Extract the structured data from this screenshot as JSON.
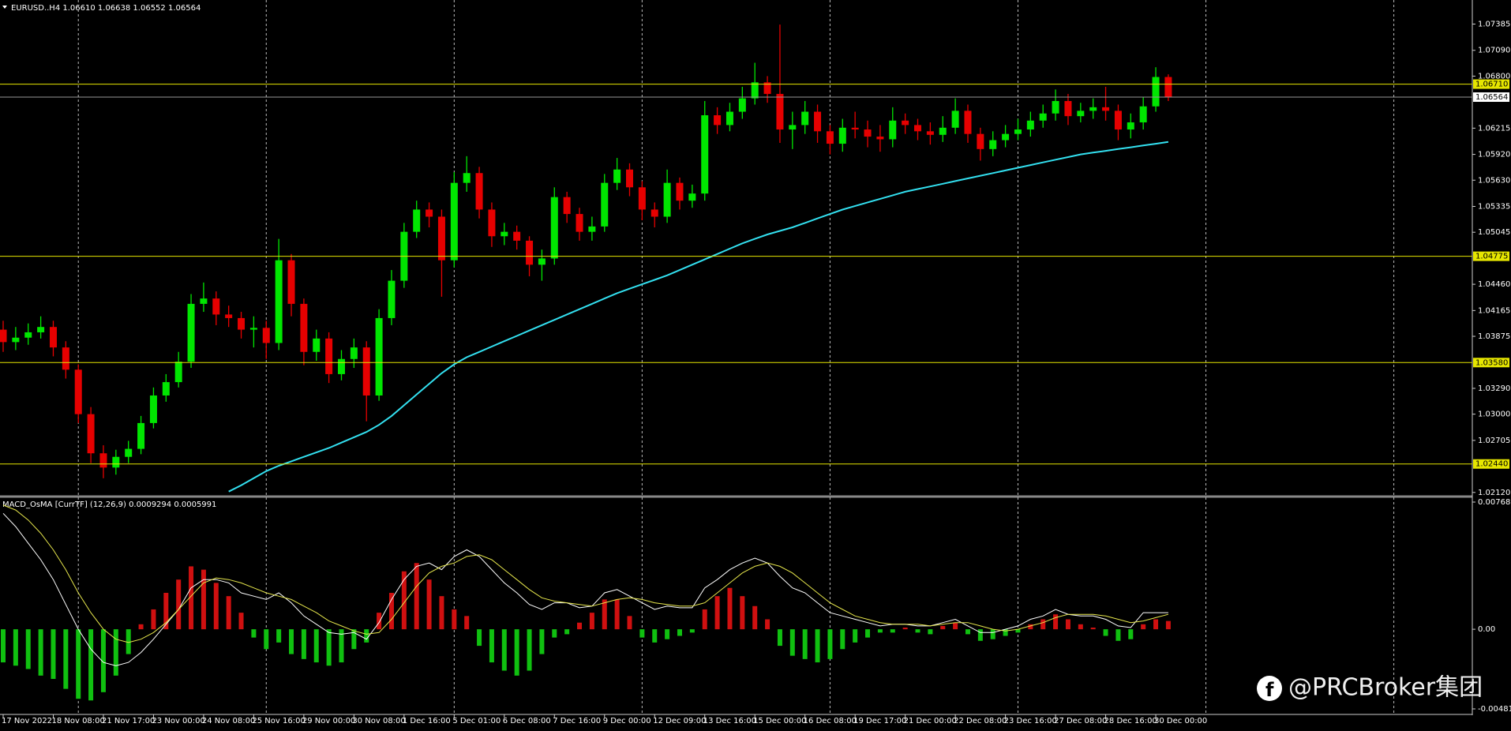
{
  "header": "EURUSD..H4  1.06610 1.06638 1.06552 1.06564",
  "watermark": "@PRCBroker集团",
  "chart_data": [
    {
      "type": "candlestick",
      "up_color": "#00e600",
      "down_color": "#e60000",
      "ylim": [
        1.0212,
        1.07385
      ],
      "yticks": [
        1.07385,
        {
          "value": 1.0709,
          "label": "1.07090"
        },
        {
          "value": 1.068,
          "label": "1.06800"
        },
        1.06215,
        {
          "value": 1.0592,
          "label": "1.05920"
        },
        {
          "value": 1.0563,
          "label": "1.05630"
        },
        1.05335,
        1.05045,
        {
          "value": 1.0446,
          "label": "1.04460"
        },
        1.04165,
        1.03875,
        {
          "value": 1.0329,
          "label": "1.03290"
        },
        {
          "value": 1.03,
          "label": "1.03000"
        },
        1.02705,
        {
          "value": 1.0212,
          "label": "1.02120"
        }
      ],
      "levels": [
        {
          "value": 1.0671,
          "label": "1.06710"
        },
        1.04775,
        {
          "value": 1.0358,
          "label": "1.03580"
        },
        {
          "value": 1.0244,
          "label": "1.02440"
        }
      ],
      "level_color": "#e6e600",
      "current": 1.06564,
      "grid": true,
      "xlabels": [
        "17 Nov 2022",
        "18 Nov 08:00",
        "21 Nov 17:00",
        "23 Nov 00:00",
        "24 Nov 08:00",
        "25 Nov 16:00",
        "29 Nov 00:00",
        "30 Nov 08:00",
        "1 Dec 16:00",
        "5 Dec 01:00",
        "6 Dec 08:00",
        "7 Dec 16:00",
        "9 Dec 00:00",
        "12 Dec 09:00",
        "13 Dec 16:00",
        "15 Dec 00:00",
        "16 Dec 08:00",
        "19 Dec 17:00",
        "21 Dec 00:00",
        "22 Dec 08:00",
        "23 Dec 16:00",
        "27 Dec 08:00",
        "28 Dec 16:00",
        "30 Dec 00:00"
      ],
      "open": [
        1.0395,
        1.0381,
        1.0386,
        1.0392,
        1.0398,
        1.0375,
        1.035,
        1.03,
        1.0256,
        1.024,
        1.0252,
        1.0261,
        1.029,
        1.0321,
        1.0336,
        1.0359,
        1.0424,
        1.043,
        1.0412,
        1.0408,
        1.0395,
        1.0397,
        1.038,
        1.0473,
        1.0424,
        1.037,
        1.0385,
        1.0345,
        1.0362,
        1.0375,
        1.0321,
        1.0408,
        1.045,
        1.0505,
        1.053,
        1.0522,
        1.0473,
        1.056,
        1.0571,
        1.053,
        1.05,
        1.0505,
        1.0495,
        1.0468,
        1.0475,
        1.0544,
        1.0525,
        1.0505,
        1.0511,
        1.056,
        1.0575,
        1.0555,
        1.053,
        1.0522,
        1.056,
        1.054,
        1.0548,
        1.0636,
        1.0625,
        1.064,
        1.0655,
        1.0673,
        1.066,
        1.062,
        1.0625,
        1.064,
        1.0618,
        1.0604,
        1.0622,
        1.062,
        1.0612,
        1.0609,
        1.063,
        1.0625,
        1.0618,
        1.0614,
        1.0622,
        1.0641,
        1.0615,
        1.0598,
        1.0608,
        1.0615,
        1.062,
        1.063,
        1.0638,
        1.0652,
        1.0635,
        1.0641,
        1.0645,
        1.0641,
        1.062,
        1.0628,
        1.0646,
        1.0679
      ],
      "high": [
        1.0405,
        1.0398,
        1.0402,
        1.041,
        1.0405,
        1.0382,
        1.0356,
        1.0308,
        1.0265,
        1.026,
        1.027,
        1.0298,
        1.033,
        1.0345,
        1.037,
        1.0435,
        1.0448,
        1.0438,
        1.0422,
        1.0415,
        1.041,
        1.0405,
        1.0497,
        1.048,
        1.043,
        1.0395,
        1.0392,
        1.0372,
        1.0385,
        1.0382,
        1.0418,
        1.0462,
        1.0515,
        1.054,
        1.0538,
        1.053,
        1.0572,
        1.059,
        1.0578,
        1.0538,
        1.0515,
        1.0512,
        1.05,
        1.0485,
        1.0555,
        1.055,
        1.0532,
        1.0522,
        1.057,
        1.0588,
        1.0582,
        1.0562,
        1.0538,
        1.0575,
        1.0566,
        1.0558,
        1.0652,
        1.0645,
        1.065,
        1.0668,
        1.0695,
        1.068,
        1.0738,
        1.064,
        1.0652,
        1.0648,
        1.0625,
        1.0632,
        1.064,
        1.063,
        1.0625,
        1.0645,
        1.0638,
        1.0632,
        1.0628,
        1.0635,
        1.0655,
        1.0648,
        1.0622,
        1.0618,
        1.0625,
        1.0632,
        1.064,
        1.0648,
        1.0665,
        1.066,
        1.065,
        1.0655,
        1.0668,
        1.0648,
        1.0638,
        1.0656,
        1.069,
        1.0682
      ],
      "low": [
        1.037,
        1.0372,
        1.0378,
        1.0385,
        1.0365,
        1.034,
        1.029,
        1.0245,
        1.0228,
        1.0232,
        1.0245,
        1.0255,
        1.0284,
        1.0314,
        1.033,
        1.0352,
        1.0415,
        1.04,
        1.0398,
        1.0385,
        1.0375,
        1.0362,
        1.0372,
        1.041,
        1.0355,
        1.036,
        1.0335,
        1.0338,
        1.0352,
        1.0292,
        1.0315,
        1.04,
        1.0442,
        1.0498,
        1.051,
        1.0432,
        1.0465,
        1.055,
        1.052,
        1.0488,
        1.049,
        1.0485,
        1.0455,
        1.045,
        1.0468,
        1.0515,
        1.0495,
        1.0495,
        1.0505,
        1.0552,
        1.0545,
        1.0518,
        1.051,
        1.0515,
        1.053,
        1.0532,
        1.054,
        1.0615,
        1.0618,
        1.0632,
        1.0648,
        1.065,
        1.0605,
        1.0598,
        1.0615,
        1.0605,
        1.0592,
        1.0595,
        1.061,
        1.06,
        1.0595,
        1.06,
        1.0615,
        1.0608,
        1.0603,
        1.0606,
        1.0615,
        1.0605,
        1.0585,
        1.059,
        1.06,
        1.0608,
        1.0612,
        1.0622,
        1.063,
        1.0625,
        1.0628,
        1.0632,
        1.063,
        1.0608,
        1.061,
        1.062,
        1.064,
        1.0652
      ],
      "close": [
        1.0381,
        1.0386,
        1.0392,
        1.0398,
        1.0375,
        1.035,
        1.03,
        1.0256,
        1.024,
        1.0252,
        1.0261,
        1.029,
        1.0321,
        1.0336,
        1.0359,
        1.0424,
        1.043,
        1.0412,
        1.0408,
        1.0395,
        1.0397,
        1.038,
        1.0473,
        1.0424,
        1.037,
        1.0385,
        1.0345,
        1.0362,
        1.0375,
        1.0321,
        1.0408,
        1.045,
        1.0505,
        1.053,
        1.0522,
        1.0473,
        1.056,
        1.0571,
        1.053,
        1.05,
        1.0505,
        1.0495,
        1.0468,
        1.0475,
        1.0544,
        1.0525,
        1.0505,
        1.0511,
        1.056,
        1.0575,
        1.0555,
        1.053,
        1.0522,
        1.056,
        1.054,
        1.0548,
        1.0636,
        1.0625,
        1.064,
        1.0655,
        1.0673,
        1.066,
        1.062,
        1.0625,
        1.064,
        1.0618,
        1.0604,
        1.0622,
        1.062,
        1.0612,
        1.0609,
        1.063,
        1.0625,
        1.0618,
        1.0614,
        1.0622,
        1.0641,
        1.0615,
        1.0598,
        1.0608,
        1.0615,
        1.062,
        1.063,
        1.0638,
        1.0652,
        1.0635,
        1.0641,
        1.0645,
        1.0641,
        1.062,
        1.0628,
        1.0646,
        1.0679,
        1.0656
      ],
      "ma": {
        "color": "#33e0f0",
        "values": [
          null,
          null,
          null,
          null,
          null,
          null,
          null,
          null,
          null,
          null,
          null,
          null,
          null,
          null,
          null,
          null,
          null,
          null,
          1.0213,
          1.022,
          1.0228,
          1.0236,
          1.0242,
          1.0247,
          1.0252,
          1.0257,
          1.0262,
          1.0268,
          1.0274,
          1.028,
          1.0288,
          1.0298,
          1.031,
          1.0322,
          1.0334,
          1.0346,
          1.0356,
          1.0364,
          1.037,
          1.0376,
          1.0382,
          1.0388,
          1.0394,
          1.04,
          1.0406,
          1.0412,
          1.0418,
          1.0424,
          1.043,
          1.0436,
          1.0441,
          1.0446,
          1.0451,
          1.0456,
          1.0462,
          1.0468,
          1.0474,
          1.048,
          1.0486,
          1.0492,
          1.0497,
          1.0502,
          1.0506,
          1.051,
          1.0515,
          1.052,
          1.0525,
          1.053,
          1.0534,
          1.0538,
          1.0542,
          1.0546,
          1.055,
          1.0553,
          1.0556,
          1.0559,
          1.0562,
          1.0565,
          1.0568,
          1.0571,
          1.0574,
          1.0577,
          1.058,
          1.0583,
          1.0586,
          1.0589,
          1.0592,
          1.0594,
          1.0596,
          1.0598,
          1.06,
          1.0602,
          1.0604,
          1.0606
        ]
      }
    },
    {
      "type": "macd",
      "title": "MACD_OsMA [CurrTF] (12,26,9) 0.0009294 0.0005991",
      "ylim": [
        -0.004811,
        0.0076837
      ],
      "yticks": [
        0.0076837,
        {
          "value": 0,
          "label": "0.00"
        },
        -0.004811
      ],
      "up_color": "#d01010",
      "down_color": "#10c010",
      "histogram": [
        -0.002,
        -0.0022,
        -0.0024,
        -0.0028,
        -0.003,
        -0.0036,
        -0.0042,
        -0.0043,
        -0.0038,
        -0.0028,
        -0.0015,
        0.0003,
        0.0012,
        0.0022,
        0.003,
        0.0038,
        0.0036,
        0.0028,
        0.002,
        0.001,
        -0.0005,
        -0.0012,
        -0.0008,
        -0.0015,
        -0.0018,
        -0.002,
        -0.0022,
        -0.002,
        -0.0012,
        -0.0008,
        0.001,
        0.0022,
        0.0035,
        0.004,
        0.003,
        0.002,
        0.0012,
        0.0008,
        -0.001,
        -0.002,
        -0.0025,
        -0.0028,
        -0.0025,
        -0.0015,
        -0.0005,
        -0.0003,
        0.0004,
        0.001,
        0.0018,
        0.0018,
        0.0008,
        -0.0005,
        -0.0008,
        -0.0006,
        -0.0004,
        -0.0002,
        0.0012,
        0.002,
        0.0025,
        0.002,
        0.0014,
        0.0006,
        -0.001,
        -0.0016,
        -0.0018,
        -0.002,
        -0.0018,
        -0.0012,
        -0.0008,
        -0.0005,
        -0.0002,
        -0.0002,
        0.0001,
        -0.0002,
        -0.0003,
        0.0002,
        0.0004,
        -0.0003,
        -0.0007,
        -0.0006,
        -0.0004,
        -0.0002,
        0.0003,
        0.0006,
        0.0009,
        0.0006,
        0.0003,
        0.0001,
        -0.0004,
        -0.0007,
        -0.0006,
        0.0003,
        0.0006,
        0.0005
      ],
      "series": [
        {
          "color": "#ffffff",
          "values": [
            0.007,
            0.0062,
            0.0052,
            0.0042,
            0.003,
            0.0015,
            0.0,
            -0.0012,
            -0.002,
            -0.0022,
            -0.002,
            -0.0014,
            -0.0006,
            0.0003,
            0.0012,
            0.0025,
            0.003,
            0.003,
            0.0028,
            0.0022,
            0.002,
            0.0018,
            0.0022,
            0.0016,
            0.0008,
            0.0003,
            -0.0002,
            -0.0003,
            -0.0002,
            -0.0006,
            0.0004,
            0.0018,
            0.003,
            0.0038,
            0.004,
            0.0036,
            0.0044,
            0.0048,
            0.0044,
            0.0036,
            0.0028,
            0.0022,
            0.0015,
            0.0012,
            0.0016,
            0.0016,
            0.0013,
            0.0014,
            0.0022,
            0.0024,
            0.002,
            0.0016,
            0.0012,
            0.0014,
            0.0013,
            0.0013,
            0.0025,
            0.003,
            0.0036,
            0.004,
            0.0043,
            0.004,
            0.0032,
            0.0025,
            0.0022,
            0.0016,
            0.001,
            0.0008,
            0.0006,
            0.0004,
            0.0002,
            0.0003,
            0.0003,
            0.0002,
            0.0002,
            0.0004,
            0.0006,
            0.0002,
            -0.0002,
            -0.0002,
            0.0,
            0.0002,
            0.0006,
            0.0008,
            0.0012,
            0.0009,
            0.0008,
            0.0008,
            0.0006,
            0.0002,
            0.0001,
            0.001,
            0.001,
            0.001
          ]
        },
        {
          "color": "#e6e64c",
          "values": [
            0.0075,
            0.0072,
            0.0066,
            0.0058,
            0.0048,
            0.0036,
            0.0022,
            0.001,
            0.0,
            -0.0006,
            -0.0008,
            -0.0006,
            -0.0002,
            0.0004,
            0.0012,
            0.002,
            0.0028,
            0.0031,
            0.003,
            0.0028,
            0.0025,
            0.0022,
            0.002,
            0.0018,
            0.0014,
            0.001,
            0.0005,
            0.0002,
            -0.0001,
            -0.0003,
            -0.0002,
            0.0006,
            0.0016,
            0.0026,
            0.0034,
            0.0038,
            0.004,
            0.0044,
            0.0045,
            0.0042,
            0.0036,
            0.003,
            0.0024,
            0.0019,
            0.0017,
            0.0016,
            0.0015,
            0.0014,
            0.0016,
            0.0018,
            0.0019,
            0.0018,
            0.0016,
            0.0015,
            0.0014,
            0.0014,
            0.0016,
            0.0022,
            0.0028,
            0.0034,
            0.0038,
            0.004,
            0.0038,
            0.0034,
            0.0028,
            0.0022,
            0.0016,
            0.0012,
            0.0008,
            0.0006,
            0.0004,
            0.0003,
            0.0003,
            0.0003,
            0.0002,
            0.0003,
            0.0004,
            0.0004,
            0.0002,
            0.0,
            -0.0001,
            0.0,
            0.0002,
            0.0004,
            0.0007,
            0.0009,
            0.0009,
            0.0009,
            0.0008,
            0.0006,
            0.0004,
            0.0005,
            0.0007,
            0.0009
          ]
        }
      ]
    }
  ]
}
